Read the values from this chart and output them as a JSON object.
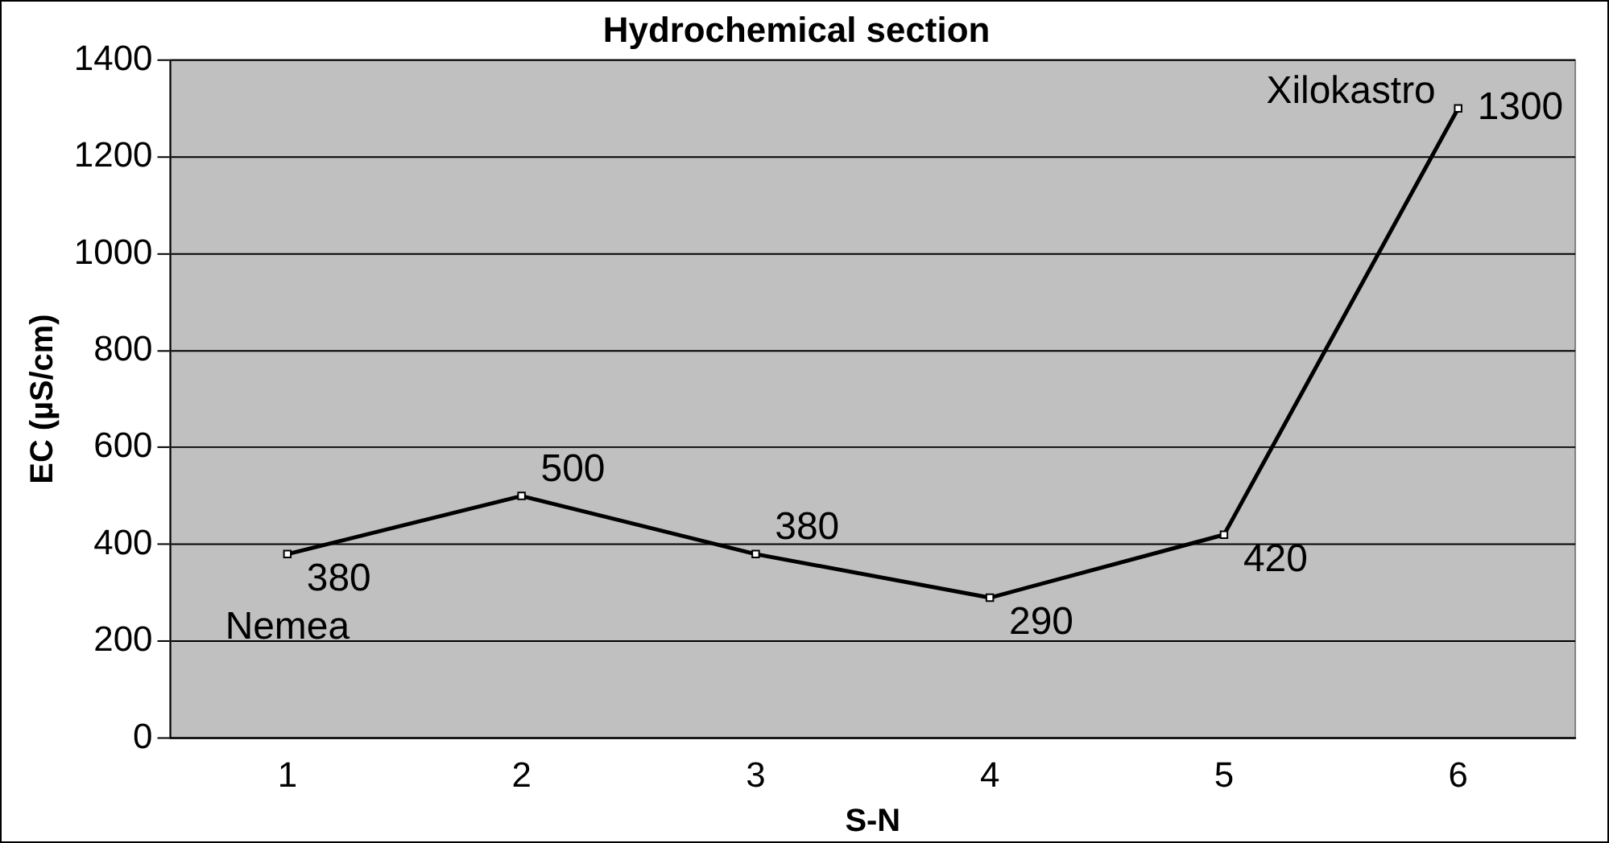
{
  "chart_data": {
    "type": "line",
    "title": "Hydrochemical section",
    "xlabel": "S-N",
    "ylabel": "EC (µS/cm)",
    "categories": [
      "1",
      "2",
      "3",
      "4",
      "5",
      "6"
    ],
    "series": [
      {
        "color": "#000000",
        "values": [
          380,
          500,
          380,
          290,
          420,
          1300
        ]
      }
    ],
    "ylim": [
      0,
      1400
    ],
    "yticks": [
      0,
      200,
      400,
      600,
      800,
      1000,
      1200,
      1400
    ],
    "grid": "y",
    "legend": false,
    "marker": "square",
    "line_style": "solid",
    "data_labels": true,
    "annotations": [
      {
        "text": "Nemea",
        "x": "1",
        "y": 380
      },
      {
        "text": "Xilokastro",
        "x": "6",
        "y": 1300
      }
    ]
  }
}
